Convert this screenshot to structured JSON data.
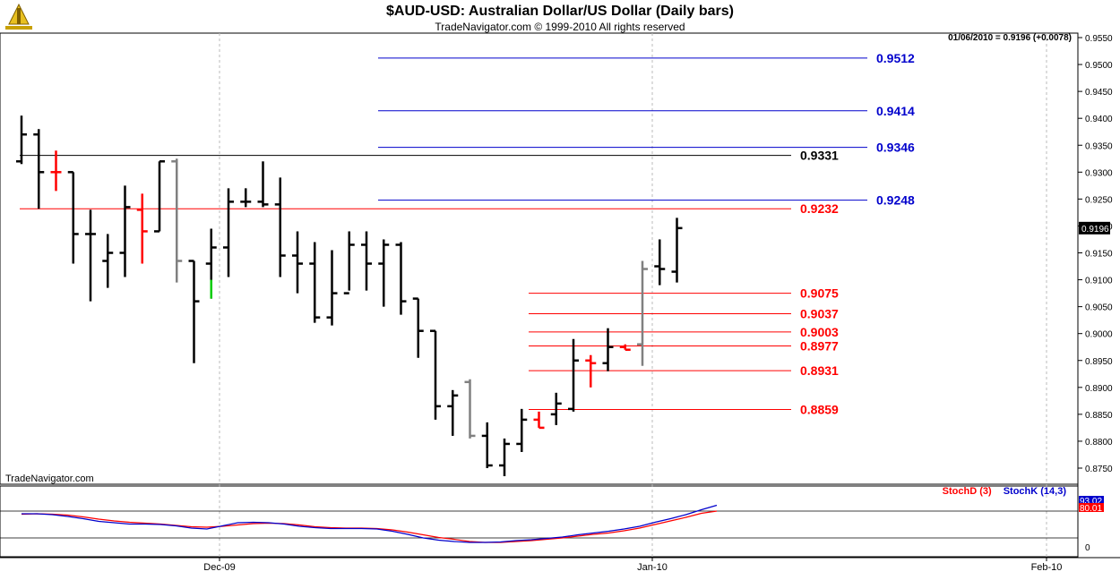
{
  "header": {
    "title": "$AUD-USD:  Australian Dollar/US Dollar  (Daily bars)",
    "subtitle": "TradeNavigator.com © 1999-2010 All rights reserved",
    "quote": "01/06/2010 = 0.9196 (+0.0078)",
    "brand": "TradeNavigator.com"
  },
  "colors": {
    "bar_up": "#000000",
    "bar_red": "#ff0000",
    "bar_gray": "#808080",
    "bar_green": "#00cc00",
    "level_blue": "#0000cc",
    "level_red": "#ff0000",
    "level_black": "#000000",
    "stoch_d": "#ff0000",
    "stoch_k": "#0000cc"
  },
  "chart_data": [
    {
      "type": "bar",
      "title": "$AUD-USD:  Australian Dollar/US Dollar  (Daily bars)",
      "x_ticks": [
        "Dec-09",
        "Jan-10",
        "Feb-10"
      ],
      "y_ticks": [
        "0.9550",
        "0.9500",
        "0.9450",
        "0.9400",
        "0.9350",
        "0.9300",
        "0.9250",
        "0.9200",
        "0.9150",
        "0.9100",
        "0.9050",
        "0.9000",
        "0.8950",
        "0.8900",
        "0.8850",
        "0.8800",
        "0.8750"
      ],
      "ylim": [
        0.872,
        0.956
      ],
      "last_price_label": "0.9196",
      "grid": "vertical dashed at month starts",
      "bars": [
        {
          "h": 0.9405,
          "l": 0.9315,
          "o": 0.932,
          "c": 0.937,
          "col": "bar_up"
        },
        {
          "h": 0.938,
          "l": 0.9232,
          "o": 0.937,
          "c": 0.93,
          "col": "bar_up"
        },
        {
          "h": 0.934,
          "l": 0.9265,
          "o": 0.93,
          "c": 0.93,
          "col": "bar_red"
        },
        {
          "h": 0.93,
          "l": 0.913,
          "o": 0.93,
          "c": 0.9185,
          "col": "bar_up"
        },
        {
          "h": 0.923,
          "l": 0.906,
          "o": 0.9185,
          "c": 0.9185,
          "col": "bar_up"
        },
        {
          "h": 0.9185,
          "l": 0.9085,
          "o": 0.9135,
          "c": 0.915,
          "col": "bar_up"
        },
        {
          "h": 0.9275,
          "l": 0.9105,
          "o": 0.915,
          "c": 0.9235,
          "col": "bar_up"
        },
        {
          "h": 0.926,
          "l": 0.913,
          "o": 0.923,
          "c": 0.919,
          "col": "bar_red"
        },
        {
          "h": 0.932,
          "l": 0.919,
          "o": 0.919,
          "c": 0.932,
          "col": "bar_up"
        },
        {
          "h": 0.9325,
          "l": 0.9095,
          "o": 0.932,
          "c": 0.9135,
          "col": "bar_gray"
        },
        {
          "h": 0.9135,
          "l": 0.8945,
          "o": 0.9135,
          "c": 0.906,
          "col": "bar_up"
        },
        {
          "h": 0.9195,
          "l": 0.9065,
          "o": 0.913,
          "c": 0.916,
          "col": "bar_up"
        },
        {
          "h": 0.927,
          "l": 0.9105,
          "o": 0.916,
          "c": 0.9245,
          "col": "bar_up"
        },
        {
          "h": 0.927,
          "l": 0.9235,
          "o": 0.9245,
          "c": 0.9245,
          "col": "bar_up"
        },
        {
          "h": 0.932,
          "l": 0.9235,
          "o": 0.9245,
          "c": 0.924,
          "col": "bar_up"
        },
        {
          "h": 0.929,
          "l": 0.9105,
          "o": 0.924,
          "c": 0.9145,
          "col": "bar_up"
        },
        {
          "h": 0.919,
          "l": 0.9075,
          "o": 0.9145,
          "c": 0.913,
          "col": "bar_up"
        },
        {
          "h": 0.917,
          "l": 0.902,
          "o": 0.913,
          "c": 0.903,
          "col": "bar_up"
        },
        {
          "h": 0.9155,
          "l": 0.9015,
          "o": 0.903,
          "c": 0.9075,
          "col": "bar_up"
        },
        {
          "h": 0.919,
          "l": 0.908,
          "o": 0.9075,
          "c": 0.9165,
          "col": "bar_up"
        },
        {
          "h": 0.919,
          "l": 0.908,
          "o": 0.9165,
          "c": 0.913,
          "col": "bar_up"
        },
        {
          "h": 0.9175,
          "l": 0.905,
          "o": 0.913,
          "c": 0.9165,
          "col": "bar_up"
        },
        {
          "h": 0.917,
          "l": 0.9035,
          "o": 0.9165,
          "c": 0.906,
          "col": "bar_up"
        },
        {
          "h": 0.9065,
          "l": 0.8955,
          "o": 0.9065,
          "c": 0.9005,
          "col": "bar_up"
        },
        {
          "h": 0.9005,
          "l": 0.884,
          "o": 0.9005,
          "c": 0.8865,
          "col": "bar_up"
        },
        {
          "h": 0.8895,
          "l": 0.881,
          "o": 0.8865,
          "c": 0.8885,
          "col": "bar_up"
        },
        {
          "h": 0.8915,
          "l": 0.8805,
          "o": 0.891,
          "c": 0.881,
          "col": "bar_gray"
        },
        {
          "h": 0.8835,
          "l": 0.875,
          "o": 0.881,
          "c": 0.8755,
          "col": "bar_up"
        },
        {
          "h": 0.8805,
          "l": 0.8735,
          "o": 0.8755,
          "c": 0.8795,
          "col": "bar_up"
        },
        {
          "h": 0.886,
          "l": 0.878,
          "o": 0.8795,
          "c": 0.884,
          "col": "bar_up"
        },
        {
          "h": 0.8855,
          "l": 0.8825,
          "o": 0.884,
          "c": 0.8825,
          "col": "bar_red"
        },
        {
          "h": 0.889,
          "l": 0.883,
          "o": 0.885,
          "c": 0.887,
          "col": "bar_up"
        },
        {
          "h": 0.899,
          "l": 0.8855,
          "o": 0.886,
          "c": 0.895,
          "col": "bar_up"
        },
        {
          "h": 0.896,
          "l": 0.89,
          "o": 0.895,
          "c": 0.8945,
          "col": "bar_red"
        },
        {
          "h": 0.901,
          "l": 0.893,
          "o": 0.8945,
          "c": 0.8975,
          "col": "bar_up"
        },
        {
          "h": 0.898,
          "l": 0.897,
          "o": 0.8975,
          "c": 0.897,
          "col": "bar_red"
        },
        {
          "h": 0.9135,
          "l": 0.894,
          "o": 0.898,
          "c": 0.912,
          "col": "bar_gray"
        },
        {
          "h": 0.9175,
          "l": 0.909,
          "o": 0.9125,
          "c": 0.912,
          "col": "bar_up"
        },
        {
          "h": 0.9215,
          "l": 0.9095,
          "o": 0.9115,
          "c": 0.9196,
          "col": "bar_up"
        }
      ],
      "levels": [
        {
          "value": 0.9512,
          "label": "0.9512",
          "color": "level_blue",
          "x_start_bar": 21
        },
        {
          "value": 0.9414,
          "label": "0.9414",
          "color": "level_blue",
          "x_start_bar": 21
        },
        {
          "value": 0.9346,
          "label": "0.9346",
          "color": "level_blue",
          "x_start_bar": 21
        },
        {
          "value": 0.9331,
          "label": "0.9331",
          "color": "level_black",
          "x_start_bar": 0
        },
        {
          "value": 0.9248,
          "label": "0.9248",
          "color": "level_blue",
          "x_start_bar": 21
        },
        {
          "value": 0.9232,
          "label": "0.9232",
          "color": "level_red",
          "x_start_bar": 0
        },
        {
          "value": 0.9075,
          "label": "0.9075",
          "color": "level_red",
          "x_start_bar": 29
        },
        {
          "value": 0.9037,
          "label": "0.9037",
          "color": "level_red",
          "x_start_bar": 29
        },
        {
          "value": 0.9003,
          "label": "0.9003",
          "color": "level_red",
          "x_start_bar": 29
        },
        {
          "value": 0.8977,
          "label": "0.8977",
          "color": "level_red",
          "x_start_bar": 29
        },
        {
          "value": 0.8931,
          "label": "0.8931",
          "color": "level_red",
          "x_start_bar": 29
        },
        {
          "value": 0.8859,
          "label": "0.8859",
          "color": "level_red",
          "x_start_bar": 29
        }
      ]
    },
    {
      "type": "line",
      "legend": [
        "StochD (3)",
        "StochK (14,3)"
      ],
      "ylim": [
        0,
        100
      ],
      "y_ticks": [
        "0"
      ],
      "reference_lines": [
        80,
        20
      ],
      "last_labels": [
        "93.02",
        "80.01"
      ],
      "series": [
        {
          "name": "StochD (3)",
          "values": [
            73,
            74,
            73,
            71,
            67,
            62,
            58,
            55,
            53,
            51,
            48,
            45,
            44,
            46,
            49,
            52,
            53,
            52,
            49,
            45,
            43,
            42,
            42,
            41,
            38,
            33,
            27,
            21,
            17,
            12,
            10,
            10,
            12,
            14,
            17,
            20,
            24,
            28,
            31,
            36,
            42,
            50,
            58,
            66,
            75,
            80
          ]
        },
        {
          "name": "StochK (14,3)",
          "values": [
            74,
            74,
            72,
            68,
            63,
            57,
            54,
            51,
            51,
            50,
            47,
            42,
            40,
            47,
            54,
            55,
            54,
            51,
            46,
            43,
            41,
            41,
            41,
            40,
            35,
            28,
            20,
            15,
            12,
            10,
            10,
            11,
            14,
            16,
            19,
            22,
            27,
            31,
            35,
            40,
            46,
            55,
            63,
            72,
            83,
            93
          ]
        }
      ]
    }
  ]
}
